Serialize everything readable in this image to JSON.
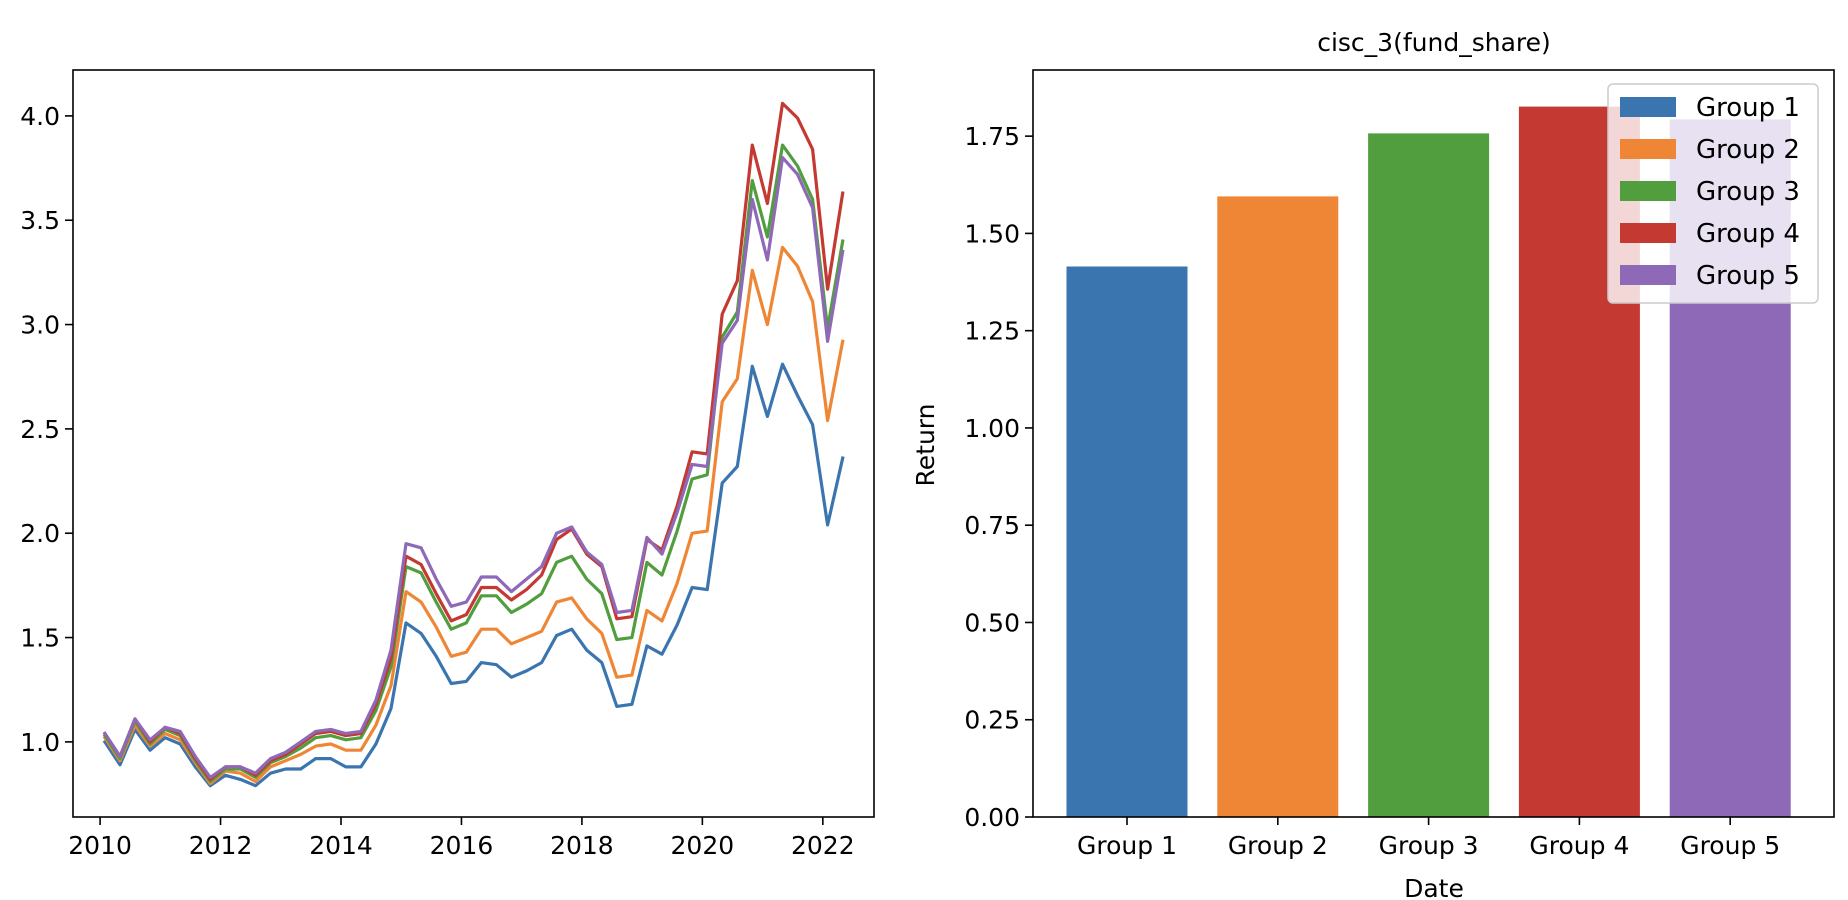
{
  "chart_data": [
    {
      "type": "line",
      "title": "",
      "xlabel": "",
      "ylabel": "",
      "xlim": [
        2009.55,
        2022.85
      ],
      "ylim": [
        0.64,
        4.22
      ],
      "xticks": [
        2010,
        2012,
        2014,
        2016,
        2018,
        2020,
        2022
      ],
      "yticks": [
        1.0,
        1.5,
        2.0,
        2.5,
        3.0,
        3.5,
        4.0
      ],
      "grid": false,
      "x": [
        2010.08,
        2010.33,
        2010.58,
        2010.83,
        2011.08,
        2011.33,
        2011.58,
        2011.83,
        2012.08,
        2012.33,
        2012.58,
        2012.83,
        2013.08,
        2013.33,
        2013.58,
        2013.83,
        2014.08,
        2014.33,
        2014.58,
        2014.83,
        2015.08,
        2015.33,
        2015.58,
        2015.83,
        2016.08,
        2016.33,
        2016.58,
        2016.83,
        2017.08,
        2017.33,
        2017.58,
        2017.83,
        2018.08,
        2018.33,
        2018.58,
        2018.83,
        2019.08,
        2019.33,
        2019.58,
        2019.83,
        2020.08,
        2020.33,
        2020.58,
        2020.83,
        2021.08,
        2021.33,
        2021.58,
        2021.83,
        2022.08,
        2022.33
      ],
      "series": [
        {
          "name": "Group 1",
          "color": "#3b75af",
          "values": [
            1.0,
            0.89,
            1.06,
            0.96,
            1.02,
            0.99,
            0.88,
            0.79,
            0.84,
            0.82,
            0.79,
            0.85,
            0.87,
            0.87,
            0.92,
            0.92,
            0.88,
            0.88,
            0.99,
            1.16,
            1.57,
            1.52,
            1.41,
            1.28,
            1.29,
            1.38,
            1.37,
            1.31,
            1.34,
            1.38,
            1.51,
            1.54,
            1.44,
            1.38,
            1.17,
            1.18,
            1.46,
            1.42,
            1.56,
            1.74,
            1.73,
            2.24,
            2.32,
            2.8,
            2.56,
            2.81,
            2.66,
            2.52,
            2.04,
            2.36
          ]
        },
        {
          "name": "Group 2",
          "color": "#ef8636",
          "values": [
            1.02,
            0.91,
            1.08,
            0.98,
            1.04,
            1.01,
            0.9,
            0.8,
            0.86,
            0.85,
            0.81,
            0.88,
            0.91,
            0.94,
            0.98,
            0.99,
            0.96,
            0.96,
            1.08,
            1.27,
            1.72,
            1.67,
            1.55,
            1.41,
            1.43,
            1.54,
            1.54,
            1.47,
            1.5,
            1.53,
            1.67,
            1.69,
            1.59,
            1.52,
            1.31,
            1.32,
            1.63,
            1.58,
            1.76,
            2.0,
            2.01,
            2.63,
            2.74,
            3.26,
            3.0,
            3.37,
            3.28,
            3.11,
            2.54,
            2.92
          ]
        },
        {
          "name": "Group 3",
          "color": "#519e3e",
          "values": [
            1.03,
            0.92,
            1.1,
            0.99,
            1.06,
            1.03,
            0.91,
            0.81,
            0.87,
            0.87,
            0.83,
            0.9,
            0.93,
            0.97,
            1.02,
            1.03,
            1.01,
            1.02,
            1.15,
            1.36,
            1.84,
            1.81,
            1.67,
            1.54,
            1.57,
            1.7,
            1.7,
            1.62,
            1.66,
            1.71,
            1.86,
            1.89,
            1.78,
            1.71,
            1.49,
            1.5,
            1.86,
            1.8,
            2.01,
            2.26,
            2.28,
            2.94,
            3.06,
            3.69,
            3.42,
            3.86,
            3.76,
            3.6,
            2.98,
            3.4
          ]
        },
        {
          "name": "Group 4",
          "color": "#c43932",
          "values": [
            1.04,
            0.93,
            1.11,
            1.0,
            1.07,
            1.04,
            0.92,
            0.82,
            0.88,
            0.88,
            0.84,
            0.91,
            0.94,
            0.99,
            1.04,
            1.05,
            1.03,
            1.04,
            1.18,
            1.4,
            1.89,
            1.85,
            1.71,
            1.58,
            1.61,
            1.74,
            1.74,
            1.68,
            1.73,
            1.8,
            1.97,
            2.02,
            1.9,
            1.84,
            1.59,
            1.6,
            1.97,
            1.92,
            2.13,
            2.39,
            2.38,
            3.05,
            3.21,
            3.86,
            3.58,
            4.06,
            3.99,
            3.84,
            3.17,
            3.63
          ]
        },
        {
          "name": "Group 5",
          "color": "#8d69b8",
          "values": [
            1.04,
            0.93,
            1.11,
            1.01,
            1.07,
            1.05,
            0.93,
            0.83,
            0.88,
            0.88,
            0.85,
            0.92,
            0.95,
            1.0,
            1.05,
            1.06,
            1.04,
            1.05,
            1.2,
            1.44,
            1.95,
            1.93,
            1.78,
            1.65,
            1.67,
            1.79,
            1.79,
            1.72,
            1.78,
            1.84,
            2.0,
            2.03,
            1.91,
            1.85,
            1.62,
            1.63,
            1.98,
            1.9,
            2.1,
            2.33,
            2.32,
            2.91,
            3.02,
            3.6,
            3.31,
            3.8,
            3.72,
            3.56,
            2.92,
            3.35
          ]
        }
      ]
    },
    {
      "type": "bar",
      "title": "cisc_3(fund_share)",
      "xlabel": "Date",
      "ylabel": "Return",
      "ylim": [
        0,
        1.92
      ],
      "yticks": [
        "0.00",
        "0.25",
        "0.50",
        "0.75",
        "1.00",
        "1.25",
        "1.50",
        "1.75"
      ],
      "grid": false,
      "legend_position": "top-right",
      "categories": [
        "Group 1",
        "Group 2",
        "Group 3",
        "Group 4",
        "Group 5"
      ],
      "values": [
        1.415,
        1.595,
        1.757,
        1.826,
        1.793
      ],
      "colors": [
        "#3b75af",
        "#ef8636",
        "#519e3e",
        "#c43932",
        "#8d69b8"
      ],
      "legend": [
        "Group 1",
        "Group 2",
        "Group 3",
        "Group 4",
        "Group 5"
      ]
    }
  ]
}
